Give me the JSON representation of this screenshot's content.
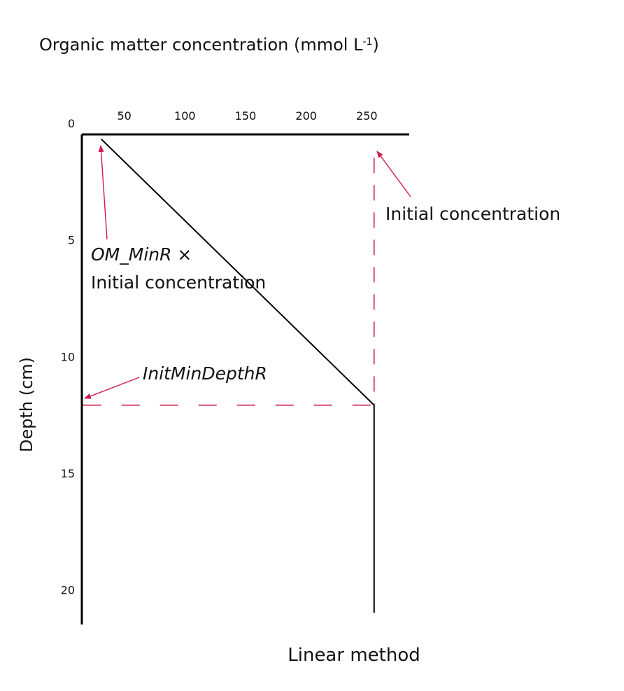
{
  "chart_data": {
    "type": "line",
    "title": "Organic matter concentration (mmol L",
    "title_superscript": "-1",
    "title_suffix": ")",
    "xlabel": "",
    "ylabel": "Depth (cm)",
    "caption": "Linear method",
    "x_axis_position": "top",
    "y_inverted": true,
    "xlim": [
      15,
      285
    ],
    "ylim": [
      0,
      21
    ],
    "x_ticks": [
      50,
      100,
      150,
      200,
      250
    ],
    "y_ticks": [
      0,
      5,
      10,
      15,
      20
    ],
    "grid": false,
    "series": [
      {
        "x": [
          31,
          256,
          256
        ],
        "y": [
          0.2,
          11.6,
          20.5
        ]
      }
    ],
    "reference_lines": [
      {
        "x": [
          256,
          256
        ],
        "y": [
          1.0,
          11.6
        ],
        "style": "dashed",
        "color": "#d11a4a"
      },
      {
        "x": [
          16,
          256
        ],
        "y": [
          11.6,
          11.6
        ],
        "style": "dashed",
        "color": "#d11a4a"
      }
    ],
    "annotations": [
      {
        "id": "initial",
        "lines": [
          "Initial concentration"
        ],
        "italic": [
          false
        ]
      },
      {
        "id": "om_minr",
        "lines": [
          "OM_MinR",
          " ×",
          "Initial concentration"
        ]
      },
      {
        "id": "initmin",
        "lines": [
          "InitMinDepthR"
        ]
      }
    ],
    "colors": {
      "line": "#000000",
      "annotation": "#d11a4a",
      "axis": "#000000"
    }
  }
}
